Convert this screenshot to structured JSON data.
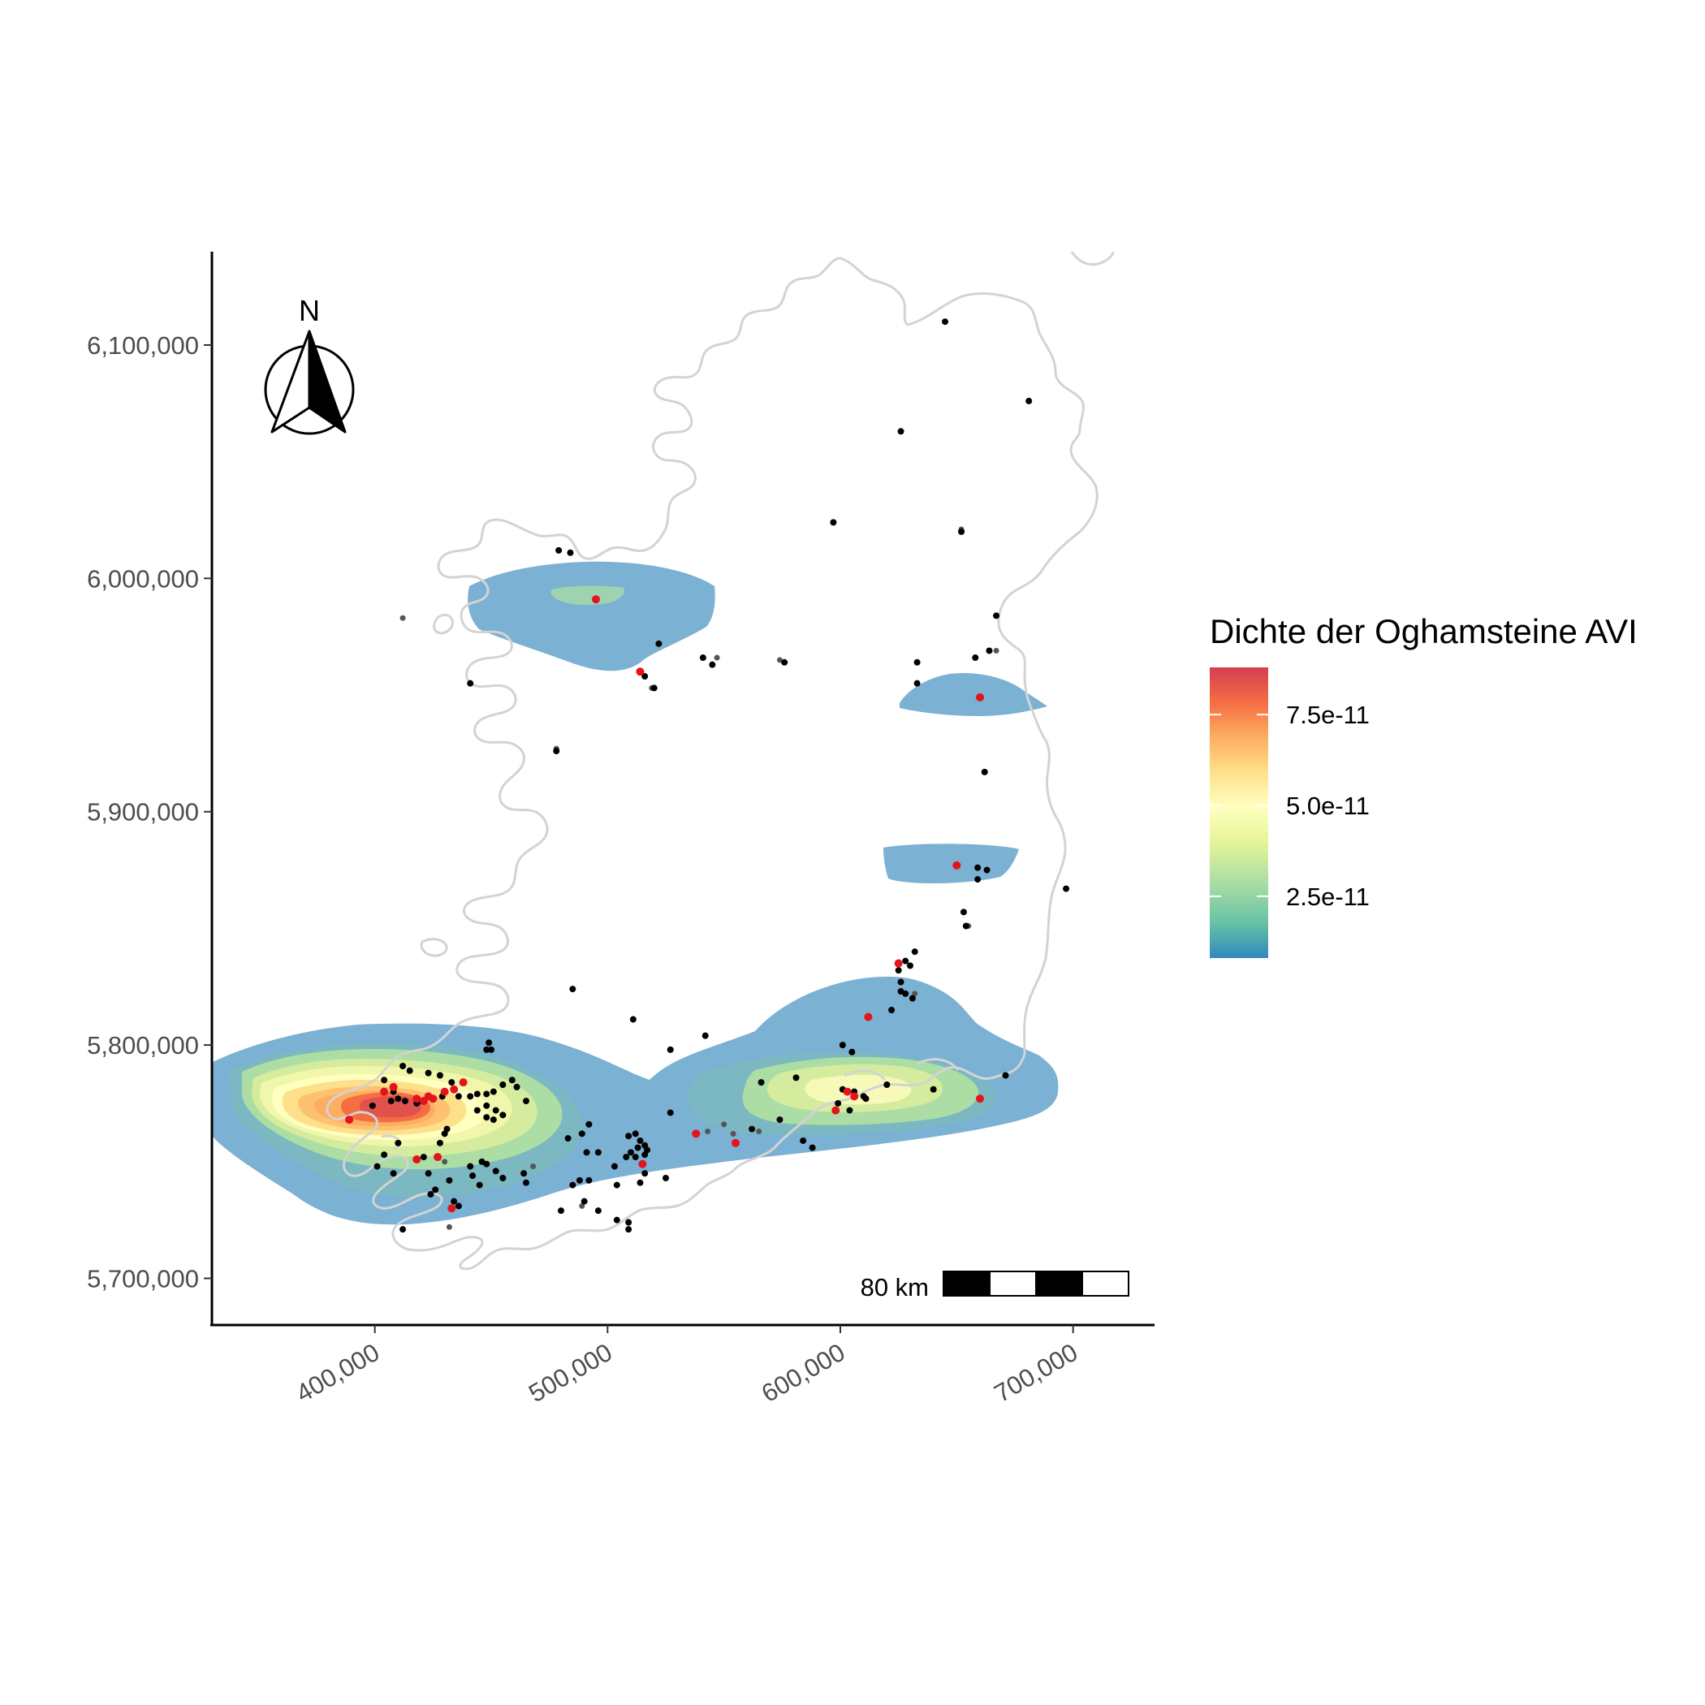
{
  "map": {
    "x_axis": {
      "range": [
        330000,
        735000
      ],
      "ticks": [
        {
          "value": 400000,
          "label": "400,000"
        },
        {
          "value": 500000,
          "label": "500,000"
        },
        {
          "value": 600000,
          "label": "600,000"
        },
        {
          "value": 700000,
          "label": "700,000"
        }
      ]
    },
    "y_axis": {
      "range": [
        5680000,
        6140000
      ],
      "ticks": [
        {
          "value": 5700000,
          "label": "5,700,000"
        },
        {
          "value": 5800000,
          "label": "5,800,000"
        },
        {
          "value": 5900000,
          "label": "5,900,000"
        },
        {
          "value": 6000000,
          "label": "6,000,000"
        },
        {
          "value": 6100000,
          "label": "6,100,000"
        }
      ]
    },
    "north_arrow_label": "N",
    "scale_bar_label": "80 km",
    "coastline_color": "#d3d3d3",
    "points_black": [
      [
        645000,
        6110000
      ],
      [
        681000,
        6076000
      ],
      [
        626000,
        6063000
      ],
      [
        597000,
        6024000
      ],
      [
        652000,
        6020000
      ],
      [
        479000,
        6012000
      ],
      [
        484000,
        6011000
      ],
      [
        667000,
        5984000
      ],
      [
        664000,
        5969000
      ],
      [
        658000,
        5966000
      ],
      [
        522000,
        5972000
      ],
      [
        541000,
        5966000
      ],
      [
        545000,
        5963000
      ],
      [
        576000,
        5964000
      ],
      [
        633000,
        5964000
      ],
      [
        633000,
        5955000
      ],
      [
        516000,
        5958000
      ],
      [
        520000,
        5953000
      ],
      [
        441000,
        5955000
      ],
      [
        478000,
        5926000
      ],
      [
        662000,
        5917000
      ],
      [
        659000,
        5876000
      ],
      [
        663000,
        5875000
      ],
      [
        659000,
        5871000
      ],
      [
        697000,
        5867000
      ],
      [
        653000,
        5857000
      ],
      [
        654000,
        5851000
      ],
      [
        632000,
        5840000
      ],
      [
        628000,
        5836000
      ],
      [
        630000,
        5834000
      ],
      [
        625000,
        5832000
      ],
      [
        626000,
        5827000
      ],
      [
        626000,
        5823000
      ],
      [
        628000,
        5822000
      ],
      [
        631000,
        5820000
      ],
      [
        622000,
        5815000
      ],
      [
        485000,
        5824000
      ],
      [
        511000,
        5811000
      ],
      [
        542000,
        5804000
      ],
      [
        527000,
        5798000
      ],
      [
        601000,
        5800000
      ],
      [
        605000,
        5797000
      ],
      [
        449000,
        5801000
      ],
      [
        448000,
        5798000
      ],
      [
        450000,
        5798000
      ],
      [
        412000,
        5791000
      ],
      [
        415000,
        5789000
      ],
      [
        423000,
        5788000
      ],
      [
        428000,
        5787000
      ],
      [
        433000,
        5784000
      ],
      [
        404000,
        5785000
      ],
      [
        408000,
        5780000
      ],
      [
        410000,
        5777000
      ],
      [
        407000,
        5776000
      ],
      [
        413000,
        5776000
      ],
      [
        418000,
        5775000
      ],
      [
        420000,
        5776000
      ],
      [
        425000,
        5777000
      ],
      [
        429000,
        5778000
      ],
      [
        436000,
        5778000
      ],
      [
        441000,
        5778000
      ],
      [
        444000,
        5779000
      ],
      [
        448000,
        5779000
      ],
      [
        451000,
        5780000
      ],
      [
        455000,
        5783000
      ],
      [
        459000,
        5785000
      ],
      [
        461000,
        5782000
      ],
      [
        465000,
        5776000
      ],
      [
        448000,
        5774000
      ],
      [
        452000,
        5772000
      ],
      [
        455000,
        5770000
      ],
      [
        451000,
        5768000
      ],
      [
        448000,
        5769000
      ],
      [
        444000,
        5772000
      ],
      [
        399000,
        5774000
      ],
      [
        431000,
        5764000
      ],
      [
        430000,
        5762000
      ],
      [
        428000,
        5758000
      ],
      [
        410000,
        5758000
      ],
      [
        404000,
        5753000
      ],
      [
        421000,
        5752000
      ],
      [
        446000,
        5750000
      ],
      [
        448000,
        5749000
      ],
      [
        441000,
        5748000
      ],
      [
        452000,
        5746000
      ],
      [
        442000,
        5744000
      ],
      [
        464000,
        5745000
      ],
      [
        455000,
        5743000
      ],
      [
        465000,
        5741000
      ],
      [
        401000,
        5748000
      ],
      [
        408000,
        5745000
      ],
      [
        423000,
        5745000
      ],
      [
        432000,
        5742000
      ],
      [
        426000,
        5738000
      ],
      [
        424000,
        5736000
      ],
      [
        445000,
        5740000
      ],
      [
        492000,
        5766000
      ],
      [
        489000,
        5762000
      ],
      [
        483000,
        5760000
      ],
      [
        491000,
        5754000
      ],
      [
        496000,
        5754000
      ],
      [
        509000,
        5761000
      ],
      [
        512000,
        5762000
      ],
      [
        514000,
        5759000
      ],
      [
        516000,
        5757000
      ],
      [
        513000,
        5756000
      ],
      [
        517000,
        5755000
      ],
      [
        510000,
        5754000
      ],
      [
        512000,
        5752000
      ],
      [
        508000,
        5752000
      ],
      [
        516000,
        5753000
      ],
      [
        503000,
        5748000
      ],
      [
        492000,
        5742000
      ],
      [
        488000,
        5742000
      ],
      [
        485000,
        5740000
      ],
      [
        504000,
        5740000
      ],
      [
        516000,
        5745000
      ],
      [
        514000,
        5741000
      ],
      [
        525000,
        5743000
      ],
      [
        527000,
        5771000
      ],
      [
        562000,
        5764000
      ],
      [
        566000,
        5784000
      ],
      [
        581000,
        5786000
      ],
      [
        584000,
        5759000
      ],
      [
        588000,
        5756000
      ],
      [
        574000,
        5768000
      ],
      [
        601000,
        5781000
      ],
      [
        606000,
        5780000
      ],
      [
        610000,
        5778000
      ],
      [
        611000,
        5777000
      ],
      [
        604000,
        5772000
      ],
      [
        599000,
        5775000
      ],
      [
        620000,
        5783000
      ],
      [
        640000,
        5781000
      ],
      [
        671000,
        5787000
      ],
      [
        490000,
        5733000
      ],
      [
        496000,
        5729000
      ],
      [
        480000,
        5729000
      ],
      [
        504000,
        5725000
      ],
      [
        509000,
        5721000
      ],
      [
        509000,
        5724000
      ],
      [
        412000,
        5721000
      ],
      [
        434000,
        5733000
      ],
      [
        436000,
        5731000
      ]
    ],
    "points_gray": [
      [
        652000,
        6021000
      ],
      [
        547000,
        5966000
      ],
      [
        574000,
        5965000
      ],
      [
        441000,
        5955000
      ],
      [
        519000,
        5953000
      ],
      [
        478000,
        5927000
      ],
      [
        667000,
        5969000
      ],
      [
        412000,
        5983000
      ],
      [
        565000,
        5763000
      ],
      [
        550000,
        5766000
      ],
      [
        543000,
        5763000
      ],
      [
        554000,
        5762000
      ],
      [
        430000,
        5750000
      ],
      [
        468000,
        5748000
      ],
      [
        489000,
        5731000
      ],
      [
        432000,
        5722000
      ],
      [
        655000,
        5851000
      ],
      [
        632000,
        5822000
      ]
    ],
    "points_red": [
      [
        495000,
        5991000
      ],
      [
        514000,
        5960000
      ],
      [
        660000,
        5949000
      ],
      [
        650000,
        5877000
      ],
      [
        625000,
        5835000
      ],
      [
        612000,
        5812000
      ],
      [
        404000,
        5780000
      ],
      [
        408000,
        5782000
      ],
      [
        418000,
        5777000
      ],
      [
        421000,
        5776000
      ],
      [
        425000,
        5777000
      ],
      [
        430000,
        5780000
      ],
      [
        434000,
        5781000
      ],
      [
        438000,
        5784000
      ],
      [
        389000,
        5768000
      ],
      [
        418000,
        5751000
      ],
      [
        427000,
        5752000
      ],
      [
        515000,
        5749000
      ],
      [
        538000,
        5762000
      ],
      [
        555000,
        5758000
      ],
      [
        603000,
        5780000
      ],
      [
        606000,
        5778000
      ],
      [
        598000,
        5772000
      ],
      [
        660000,
        5777000
      ],
      [
        433000,
        5730000
      ],
      [
        423000,
        5778000
      ]
    ]
  },
  "legend": {
    "title": "Dichte der Oghamsteine AVI",
    "breaks": [
      {
        "value": 2.5e-11,
        "label": "2.5e-11"
      },
      {
        "value": 5e-11,
        "label": "5.0e-11"
      },
      {
        "value": 7.5e-11,
        "label": "7.5e-11"
      }
    ],
    "range": [
      8e-12,
      8.8e-11
    ],
    "colors": [
      "#3288bd",
      "#66c2a5",
      "#abdda4",
      "#e6f598",
      "#ffffbf",
      "#fee08b",
      "#fdae61",
      "#f46d43",
      "#d53e4f"
    ]
  }
}
